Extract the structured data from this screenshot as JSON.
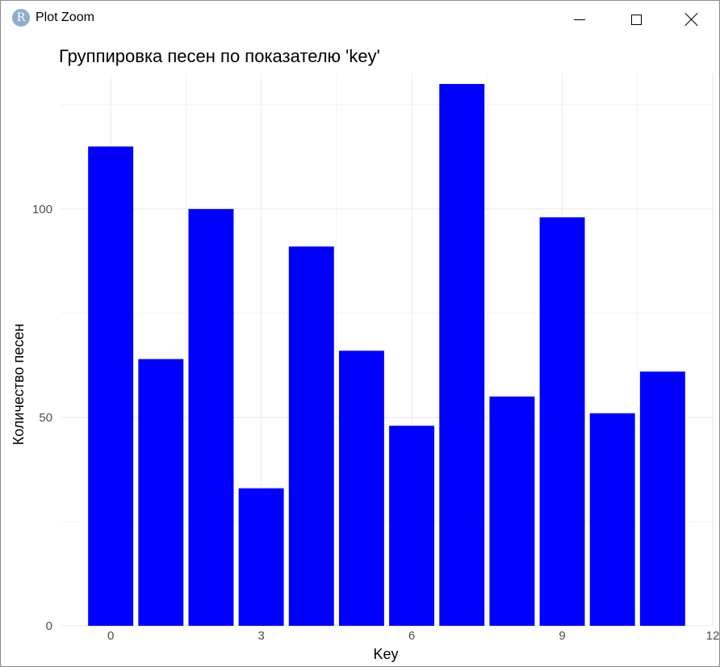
{
  "window": {
    "title": "Plot Zoom",
    "app_icon_letter": "R"
  },
  "colors": {
    "bar": "#0000ff",
    "grid": "#ebebeb",
    "axis_text": "#4d4d4d",
    "title_text": "#000000"
  },
  "chart_data": {
    "type": "bar",
    "title": "Группировка песен по показателю 'key'",
    "xlabel": "Key",
    "ylabel": "Количество песен",
    "x": [
      0,
      1,
      2,
      3,
      4,
      5,
      6,
      7,
      8,
      9,
      10,
      11
    ],
    "values": [
      115,
      64,
      100,
      33,
      91,
      66,
      48,
      130,
      55,
      98,
      51,
      61
    ],
    "xlim": [
      -1,
      12
    ],
    "ylim": [
      0,
      130
    ],
    "xticks": [
      0,
      3,
      6,
      9,
      12
    ],
    "yticks": [
      0,
      50,
      100
    ],
    "grid": true,
    "legend": "none"
  }
}
